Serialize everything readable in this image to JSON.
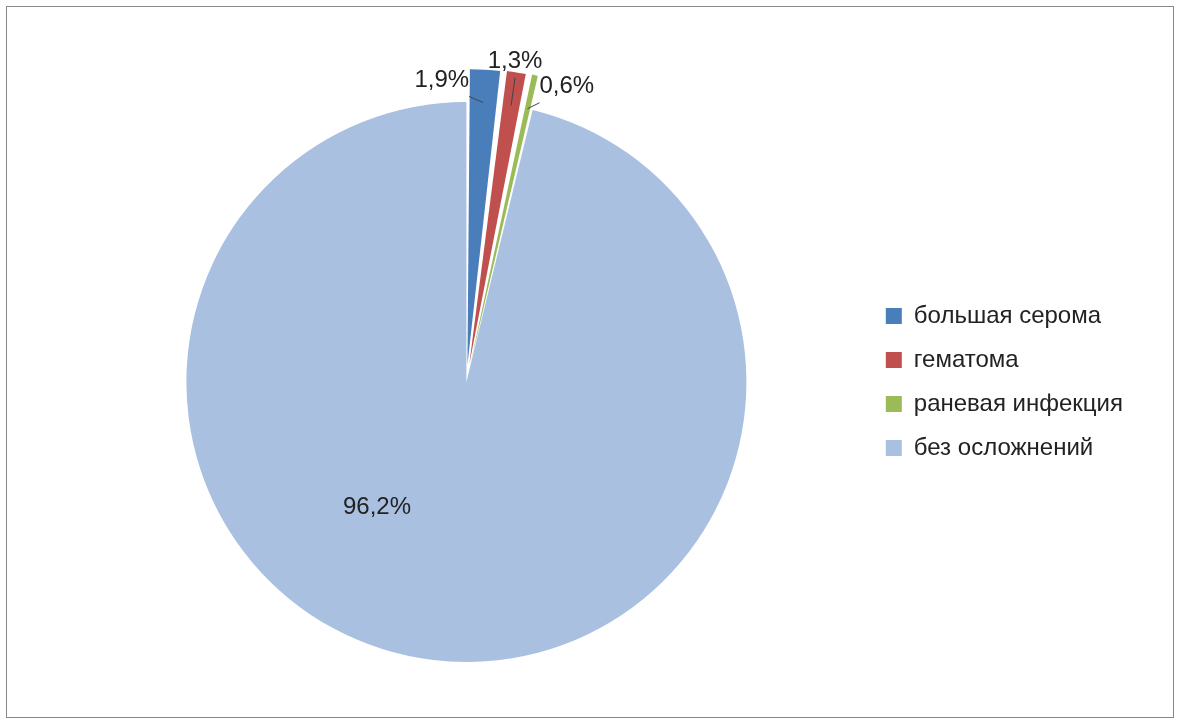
{
  "chart_data": {
    "type": "pie",
    "categories": [
      "большая серома",
      "гематома",
      "раневая инфекция",
      "без осложнений"
    ],
    "values": [
      1.9,
      1.3,
      0.6,
      96.2
    ],
    "colors": [
      "#4a7ebb",
      "#c0504d",
      "#9bbb59",
      "#a9c0e0"
    ],
    "value_labels": [
      "1,9%",
      "1,3%",
      "0,6%",
      "96,2%"
    ],
    "legend": "right"
  }
}
